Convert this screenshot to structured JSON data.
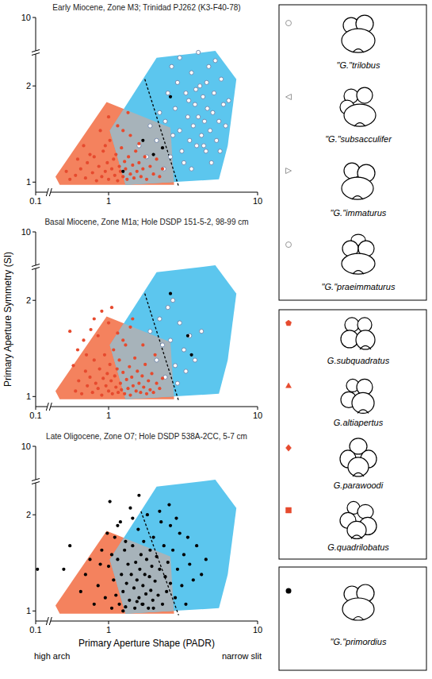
{
  "chart_data": [
    {
      "type": "scatter",
      "title": "Early Miocene, Zone M3; Trinidad PJ262 (K3-F40-78)",
      "log": true,
      "xlim": [
        0.1,
        10
      ],
      "ylim": [
        0.93,
        10
      ],
      "xticks": [
        0.1,
        1,
        10
      ],
      "yticks": [
        1,
        2,
        10
      ],
      "series": [
        {
          "type": "polygon",
          "color": "#f4825e",
          "x": [
            0.44,
            0.97,
            2.6,
            2.75,
            0.47
          ],
          "values": [
            1.04,
            1.78,
            1.48,
            0.98,
            0.98
          ]
        },
        {
          "type": "polygon",
          "color": "#5cc6ee",
          "x": [
            1.3,
            1.02,
            2.1,
            5.2,
            7.2,
            6.3,
            5.5
          ],
          "values": [
            0.98,
            1.45,
            2.45,
            2.7,
            2.1,
            1.3,
            1.02
          ]
        },
        {
          "type": "line",
          "line_style": "dashed",
          "color": "#000000",
          "x": [
            1.75,
            2.95
          ],
          "values": [
            2.1,
            0.97
          ]
        },
        {
          "type": "scatter",
          "marker": "open-circle",
          "color": "#6d82a8",
          "x": [
            2.1,
            2.4,
            2.6,
            2.8,
            3.0,
            3.1,
            3.3,
            3.4,
            3.5,
            3.6,
            3.7,
            3.8,
            3.9,
            4.0,
            4.1,
            4.2,
            4.3,
            4.4,
            4.5,
            4.6,
            4.7,
            4.8,
            5.0,
            5.1,
            5.3,
            5.5,
            5.7,
            5.9,
            6.1,
            6.4,
            2.9,
            3.2,
            3.6,
            4.9,
            2.5,
            2.2,
            1.9,
            1.8,
            2.7,
            3.85,
            4.35,
            5.2,
            3.0,
            4.0,
            2.65,
            1.6,
            5.6,
            4.55,
            3.45,
            2.35
          ],
          "values": [
            1.35,
            1.55,
            1.2,
            1.7,
            1.45,
            1.25,
            1.9,
            1.6,
            1.35,
            2.2,
            1.5,
            1.75,
            1.3,
            1.6,
            2.0,
            1.4,
            1.85,
            1.55,
            1.25,
            1.7,
            2.3,
            1.45,
            1.65,
            1.9,
            1.35,
            1.55,
            2.1,
            1.75,
            1.5,
            1.8,
            2.05,
            1.15,
            1.1,
            1.15,
            1.9,
            1.65,
            1.5,
            1.2,
            1.4,
            1.95,
            1.3,
            2.4,
            2.45,
            2.55,
            2.3,
            1.3,
            1.25,
            2.05,
            1.8,
            1.1
          ]
        },
        {
          "type": "scatter",
          "marker": "dot",
          "color": "#e64a2e",
          "x": [
            0.55,
            0.6,
            0.65,
            0.7,
            0.72,
            0.78,
            0.8,
            0.83,
            0.86,
            0.9,
            0.92,
            0.95,
            0.98,
            1.0,
            1.02,
            1.05,
            1.08,
            1.1,
            1.12,
            1.15,
            1.18,
            1.2,
            1.22,
            1.25,
            1.28,
            1.3,
            1.33,
            1.36,
            1.4,
            1.45,
            1.48,
            1.52,
            1.55,
            1.6,
            1.65,
            1.7,
            1.75,
            1.8,
            1.9,
            2.0,
            2.1,
            2.2,
            0.68,
            0.88,
            1.15,
            0.75,
            1.4,
            0.62,
            1.0,
            1.25,
            0.95,
            1.6,
            2.3,
            0.52,
            1.35
          ],
          "values": [
            1.02,
            1.05,
            1.1,
            1.03,
            1.15,
            1.07,
            1.2,
            1.01,
            1.12,
            1.04,
            1.25,
            1.08,
            1.15,
            1.02,
            1.35,
            1.1,
            1.18,
            1.05,
            1.22,
            1.01,
            1.12,
            1.08,
            1.28,
            1.04,
            1.16,
            1.1,
            1.02,
            1.2,
            1.06,
            1.13,
            1.03,
            1.25,
            1.08,
            1.15,
            1.04,
            1.1,
            1.2,
            1.02,
            1.12,
            1.06,
            1.18,
            1.04,
            1.3,
            1.45,
            1.5,
            1.22,
            1.4,
            1.18,
            1.6,
            1.45,
            1.3,
            1.32,
            1.1,
            1.08,
            1.65
          ]
        },
        {
          "type": "scatter",
          "marker": "dot",
          "color": "#000000",
          "x": [
            2.6,
            1.7,
            2.3,
            1.25,
            2.0
          ],
          "values": [
            1.85,
            1.35,
            1.28,
            1.08,
            1.22
          ]
        }
      ]
    },
    {
      "type": "scatter",
      "title": "Basal Miocene, Zone M1a; Hole DSDP 151-5-2, 98-99 cm",
      "log": true,
      "xlim": [
        0.1,
        10
      ],
      "ylim": [
        0.93,
        10
      ],
      "xticks": [
        0.1,
        1,
        10
      ],
      "yticks": [
        1,
        2,
        10
      ],
      "series": [
        {
          "type": "polygon",
          "color": "#f4825e",
          "x": [
            0.44,
            0.97,
            2.6,
            2.75,
            0.47
          ],
          "values": [
            1.04,
            1.78,
            1.48,
            0.98,
            0.98
          ]
        },
        {
          "type": "polygon",
          "color": "#5cc6ee",
          "x": [
            1.3,
            1.02,
            2.1,
            5.2,
            7.2,
            6.3,
            5.5
          ],
          "values": [
            0.98,
            1.45,
            2.45,
            2.7,
            2.1,
            1.3,
            1.02
          ]
        },
        {
          "type": "line",
          "line_style": "dashed",
          "color": "#000000",
          "x": [
            1.75,
            2.95
          ],
          "values": [
            2.1,
            0.97
          ]
        },
        {
          "type": "scatter",
          "marker": "open-circle",
          "color": "#6d82a8",
          "x": [
            2.1,
            2.4,
            2.6,
            2.8,
            3.0,
            3.2,
            2.5,
            2.9,
            3.5,
            2.2,
            2.7,
            3.8,
            2.3,
            3.3,
            4.2,
            1.9
          ],
          "values": [
            1.3,
            1.15,
            1.5,
            1.25,
            1.7,
            1.4,
            1.9,
            1.1,
            1.55,
            1.75,
            2.0,
            1.3,
            1.45,
            1.2,
            1.6,
            1.6
          ]
        },
        {
          "type": "scatter",
          "marker": "dot",
          "color": "#e64a2e",
          "x": [
            0.6,
            0.63,
            0.66,
            0.7,
            0.72,
            0.75,
            0.78,
            0.8,
            0.82,
            0.85,
            0.87,
            0.9,
            0.92,
            0.94,
            0.96,
            0.98,
            1.0,
            1.02,
            1.04,
            1.06,
            1.08,
            1.1,
            1.12,
            1.14,
            1.16,
            1.18,
            1.2,
            1.22,
            1.25,
            1.28,
            1.3,
            1.32,
            1.35,
            1.38,
            1.4,
            1.43,
            1.46,
            1.5,
            1.53,
            1.56,
            1.6,
            1.64,
            1.68,
            1.72,
            1.76,
            1.8,
            1.85,
            1.9,
            1.95,
            2.0,
            2.1,
            2.2,
            2.3,
            0.68,
            0.76,
            0.85,
            1.0,
            0.9,
            1.15,
            1.4,
            0.62,
            1.7,
            2.05,
            1.25,
            0.58,
            0.71,
            1.45,
            1.05,
            0.8,
            0.55
          ],
          "values": [
            1.04,
            1.12,
            1.02,
            1.2,
            1.08,
            1.15,
            1.03,
            1.3,
            1.1,
            1.06,
            1.22,
            1.01,
            1.14,
            1.35,
            1.08,
            1.18,
            1.04,
            1.26,
            1.12,
            1.02,
            1.4,
            1.16,
            1.07,
            1.22,
            1.03,
            1.3,
            1.1,
            1.05,
            1.19,
            1.02,
            1.45,
            1.13,
            1.06,
            1.24,
            1.01,
            1.15,
            1.08,
            1.32,
            1.04,
            1.2,
            1.1,
            1.03,
            1.16,
            1.07,
            1.26,
            1.02,
            1.12,
            1.05,
            1.18,
            1.03,
            1.1,
            1.06,
            1.14,
            1.5,
            1.62,
            1.55,
            1.7,
            1.85,
            1.58,
            1.65,
            1.4,
            1.45,
            1.35,
            1.5,
            1.25,
            1.35,
            1.75,
            1.9,
            1.75,
            1.6
          ]
        },
        {
          "type": "scatter",
          "marker": "dot",
          "color": "#000000",
          "x": [
            2.6,
            3.4,
            3.6
          ],
          "values": [
            2.1,
            1.55,
            1.35
          ]
        }
      ]
    },
    {
      "type": "scatter",
      "title": "Late Oligocene, Zone O7; Hole DSDP 538A-2CC, 5-7 cm",
      "log": true,
      "xlim": [
        0.1,
        10
      ],
      "ylim": [
        0.93,
        10
      ],
      "xticks": [
        0.1,
        1,
        10
      ],
      "yticks": [
        1,
        2,
        10
      ],
      "series": [
        {
          "type": "polygon",
          "color": "#f4825e",
          "x": [
            0.44,
            0.97,
            2.6,
            2.75,
            0.47
          ],
          "values": [
            1.04,
            1.78,
            1.48,
            0.98,
            0.98
          ]
        },
        {
          "type": "polygon",
          "color": "#5cc6ee",
          "x": [
            1.3,
            1.02,
            2.1,
            5.2,
            7.2,
            6.3,
            5.5
          ],
          "values": [
            0.98,
            1.45,
            2.45,
            2.7,
            2.1,
            1.3,
            1.02
          ]
        },
        {
          "type": "line",
          "line_style": "dashed",
          "color": "#000000",
          "x": [
            1.65,
            2.95
          ],
          "values": [
            2.05,
            0.97
          ]
        },
        {
          "type": "scatter",
          "marker": "dot",
          "color": "#000000",
          "x": [
            0.12,
            0.5,
            0.55,
            0.65,
            0.7,
            0.75,
            0.8,
            0.85,
            0.9,
            0.95,
            1.0,
            1.02,
            1.05,
            1.08,
            1.1,
            1.12,
            1.15,
            1.18,
            1.2,
            1.22,
            1.25,
            1.28,
            1.3,
            1.32,
            1.35,
            1.38,
            1.4,
            1.42,
            1.45,
            1.48,
            1.5,
            1.52,
            1.55,
            1.58,
            1.6,
            1.62,
            1.65,
            1.68,
            1.7,
            1.72,
            1.75,
            1.78,
            1.8,
            1.82,
            1.85,
            1.88,
            1.9,
            1.92,
            1.95,
            1.98,
            2.0,
            2.05,
            2.1,
            2.15,
            2.2,
            2.25,
            2.3,
            2.35,
            2.4,
            2.45,
            2.5,
            2.55,
            2.6,
            2.7,
            2.8,
            2.9,
            3.0,
            3.1,
            3.2,
            3.3,
            3.5,
            3.7,
            3.9,
            4.2,
            4.5,
            2.0,
            1.3,
            1.15,
            0.98,
            1.6,
            1.45,
            2.2,
            1.05,
            0.88,
            2.6,
            3.4,
            1.7,
            1.25,
            1.55,
            2.85
          ],
          "values": [
            1.35,
            1.35,
            1.6,
            1.15,
            1.3,
            1.45,
            1.05,
            1.2,
            1.55,
            1.1,
            1.38,
            2.2,
            1.02,
            1.25,
            1.7,
            1.12,
            1.45,
            1.05,
            1.9,
            1.3,
            1.15,
            1.55,
            1.03,
            1.22,
            1.4,
            1.08,
            2.1,
            1.3,
            1.6,
            1.18,
            1.02,
            1.42,
            1.25,
            1.8,
            1.1,
            1.35,
            1.5,
            1.05,
            1.2,
            1.65,
            1.3,
            1.13,
            1.45,
            2.0,
            1.02,
            1.28,
            1.55,
            1.16,
            1.38,
            1.08,
            1.7,
            1.24,
            1.48,
            1.12,
            1.35,
            1.9,
            1.05,
            1.6,
            1.28,
            1.15,
            1.42,
            2.15,
            1.22,
            1.55,
            1.1,
            1.35,
            1.75,
            1.2,
            1.5,
            1.05,
            1.4,
            1.25,
            1.6,
            1.3,
            1.45,
            1.02,
            1.65,
            1.85,
            1.75,
            2.3,
            1.95,
            2.05,
            1.5,
            1.4,
            1.85,
            1.7,
            1.05,
            1.0,
            1.07,
            1.95
          ]
        }
      ]
    }
  ],
  "figure": {
    "y_label": "Primary Aperture Symmetry (SI)",
    "x_label": "Primary Aperture Shape (PADR)",
    "x_left_note": "high arch",
    "x_right_note": "narrow slit"
  },
  "key": {
    "groups": [
      {
        "entries": [
          {
            "name": "\"G.\"trilobus",
            "marker": "open-circle",
            "color": "#8c8c8c"
          },
          {
            "name": "\"G.\"subsacculifer",
            "marker": "open-triangle-left",
            "color": "#8c8c8c"
          },
          {
            "name": "\"G.\"immaturus",
            "marker": "open-triangle-right",
            "color": "#8c8c8c"
          },
          {
            "name": "\"G.\"praeimmaturus",
            "marker": "open-circle",
            "color": "#8c8c8c"
          }
        ]
      },
      {
        "entries": [
          {
            "name": "G.subquadratus",
            "marker": "pentagon",
            "color": "#e64a2e"
          },
          {
            "name": "G.altiapertus",
            "marker": "triangle",
            "color": "#e64a2e"
          },
          {
            "name": "G.parawoodi",
            "marker": "diamond",
            "color": "#e64a2e"
          },
          {
            "name": "G.quadrilobatus",
            "marker": "square",
            "color": "#e64a2e"
          }
        ]
      },
      {
        "entries": [
          {
            "name": "\"G.\"primordius",
            "marker": "dot",
            "color": "#000000"
          }
        ]
      }
    ]
  }
}
